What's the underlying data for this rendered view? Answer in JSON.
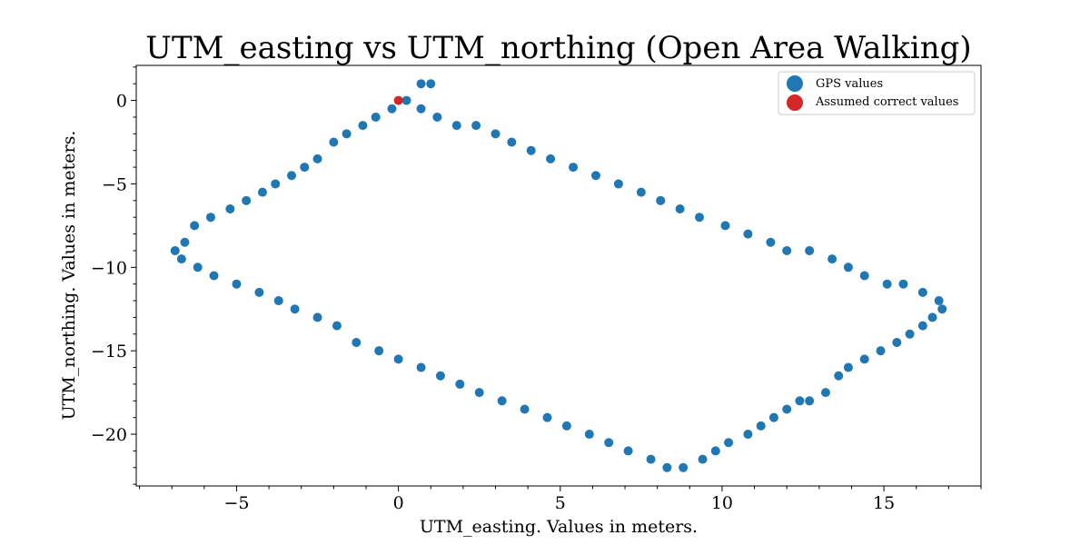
{
  "chart_data": {
    "type": "scatter",
    "title": "UTM_easting vs UTM_northing (Open Area Walking)",
    "xlabel": "UTM_easting. Values in meters.",
    "ylabel": "UTM_northing. Values in meters.",
    "xlim": [
      -8.1,
      18.0
    ],
    "ylim": [
      -23.1,
      2.1
    ],
    "xticks": [
      -5,
      0,
      5,
      10,
      15
    ],
    "yticks": [
      0,
      -5,
      -10,
      -15,
      -20
    ],
    "grid": false,
    "legend_position": "top-right",
    "series": [
      {
        "name": "GPS values",
        "color": "#1f77b4",
        "points": [
          [
            -6.9,
            -9.0
          ],
          [
            -6.7,
            -9.5
          ],
          [
            -6.6,
            -8.5
          ],
          [
            -6.3,
            -7.5
          ],
          [
            -6.2,
            -10.0
          ],
          [
            -5.8,
            -7.0
          ],
          [
            -5.7,
            -10.5
          ],
          [
            -5.2,
            -6.5
          ],
          [
            -5.0,
            -11.0
          ],
          [
            -4.7,
            -6.0
          ],
          [
            -4.3,
            -11.5
          ],
          [
            -4.2,
            -5.5
          ],
          [
            -3.8,
            -5.0
          ],
          [
            -3.7,
            -12.0
          ],
          [
            -3.3,
            -4.5
          ],
          [
            -3.2,
            -12.5
          ],
          [
            -2.9,
            -4.0
          ],
          [
            -2.5,
            -3.5
          ],
          [
            -2.5,
            -13.0
          ],
          [
            -2.0,
            -2.5
          ],
          [
            -1.9,
            -13.5
          ],
          [
            -1.6,
            -2.0
          ],
          [
            -1.3,
            -14.5
          ],
          [
            -1.1,
            -1.5
          ],
          [
            -0.7,
            -1.0
          ],
          [
            -0.6,
            -15.0
          ],
          [
            -0.2,
            -0.5
          ],
          [
            0.0,
            -15.5
          ],
          [
            0.25,
            0.0
          ],
          [
            0.7,
            1.0
          ],
          [
            1.0,
            1.0
          ],
          [
            0.7,
            -0.5
          ],
          [
            0.7,
            -16.0
          ],
          [
            1.2,
            -1.0
          ],
          [
            1.3,
            -16.5
          ],
          [
            1.8,
            -1.5
          ],
          [
            1.9,
            -17.0
          ],
          [
            2.4,
            -1.5
          ],
          [
            2.5,
            -17.5
          ],
          [
            3.0,
            -2.0
          ],
          [
            3.2,
            -18.0
          ],
          [
            3.5,
            -2.5
          ],
          [
            3.9,
            -18.5
          ],
          [
            4.1,
            -3.0
          ],
          [
            4.6,
            -19.0
          ],
          [
            4.7,
            -3.5
          ],
          [
            5.2,
            -19.5
          ],
          [
            5.4,
            -4.0
          ],
          [
            5.9,
            -20.0
          ],
          [
            6.1,
            -4.5
          ],
          [
            6.5,
            -20.5
          ],
          [
            6.8,
            -5.0
          ],
          [
            7.1,
            -21.0
          ],
          [
            7.5,
            -5.5
          ],
          [
            7.8,
            -21.5
          ],
          [
            8.1,
            -6.0
          ],
          [
            8.3,
            -22.0
          ],
          [
            8.7,
            -6.5
          ],
          [
            8.8,
            -22.0
          ],
          [
            9.3,
            -7.0
          ],
          [
            9.4,
            -21.5
          ],
          [
            9.8,
            -21.0
          ],
          [
            10.1,
            -7.5
          ],
          [
            10.2,
            -20.5
          ],
          [
            10.8,
            -8.0
          ],
          [
            10.8,
            -20.0
          ],
          [
            11.2,
            -19.5
          ],
          [
            11.5,
            -8.5
          ],
          [
            11.6,
            -19.0
          ],
          [
            12.0,
            -9.0
          ],
          [
            12.0,
            -18.5
          ],
          [
            12.4,
            -18.0
          ],
          [
            12.7,
            -9.0
          ],
          [
            12.7,
            -18.0
          ],
          [
            13.2,
            -17.5
          ],
          [
            13.4,
            -9.5
          ],
          [
            13.6,
            -16.5
          ],
          [
            13.9,
            -10.0
          ],
          [
            13.9,
            -16.0
          ],
          [
            14.4,
            -10.5
          ],
          [
            14.4,
            -15.5
          ],
          [
            14.9,
            -15.0
          ],
          [
            15.1,
            -11.0
          ],
          [
            15.4,
            -14.5
          ],
          [
            15.6,
            -11.0
          ],
          [
            15.8,
            -14.0
          ],
          [
            16.2,
            -11.5
          ],
          [
            16.2,
            -13.5
          ],
          [
            16.5,
            -13.0
          ],
          [
            16.7,
            -12.0
          ],
          [
            16.8,
            -12.5
          ]
        ]
      },
      {
        "name": "Assumed correct values",
        "color": "#d62728",
        "points": [
          [
            0.0,
            0.0
          ]
        ]
      }
    ]
  }
}
